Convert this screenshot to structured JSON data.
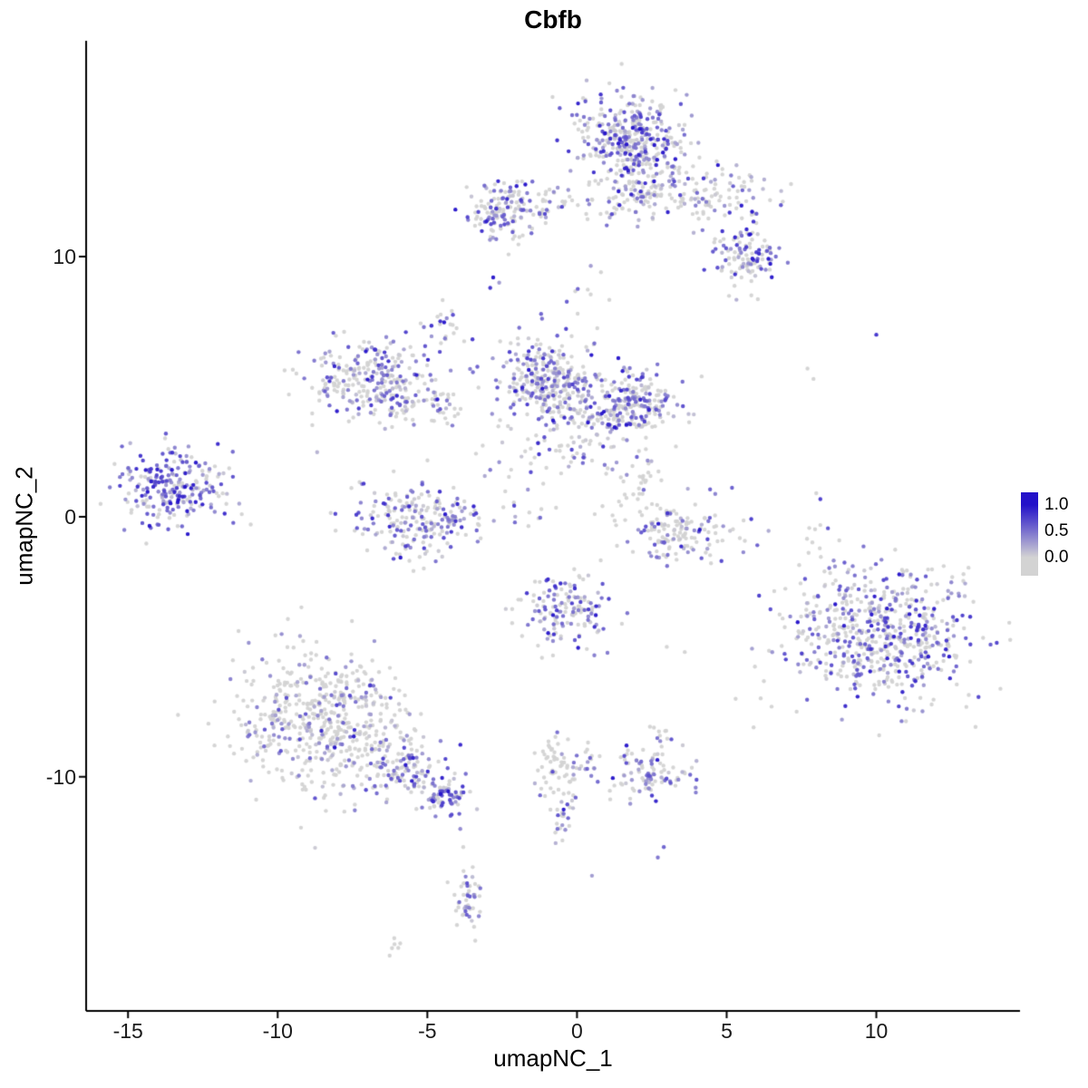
{
  "chart_data": {
    "type": "scatter",
    "title": "Cbfb",
    "xlabel": "umapNC_1",
    "ylabel": "umapNC_2",
    "xlim": [
      -16.4,
      14.8
    ],
    "ylim": [
      -19.0,
      18.3
    ],
    "xticks": [
      -15,
      -10,
      -5,
      0,
      5,
      10
    ],
    "yticks": [
      -10,
      0,
      10
    ],
    "legend": {
      "ticks": [
        "1.0",
        "0.5",
        "0.0"
      ],
      "position": "right"
    },
    "colors": {
      "low": "#D3D3D3",
      "high": "#2311C9",
      "axis": "#000000",
      "tick_text": "#1a1a1a"
    },
    "point_radius": 2.2,
    "seed": 20240612,
    "clusters": [
      {
        "name": "top-main",
        "cx": 1.8,
        "cy": 14.5,
        "sx": 0.95,
        "sy": 1.0,
        "n": 380,
        "frac": 0.55,
        "vmean": 0.5,
        "vsd": 0.28
      },
      {
        "name": "top-main-lower",
        "cx": 2.0,
        "cy": 12.4,
        "sx": 0.7,
        "sy": 0.5,
        "n": 90,
        "frac": 0.4,
        "vmean": 0.45,
        "vsd": 0.25
      },
      {
        "name": "top-right-trail",
        "cx": 4.6,
        "cy": 12.4,
        "sx": 1.1,
        "sy": 0.55,
        "n": 110,
        "frac": 0.35,
        "vmean": 0.45,
        "vsd": 0.3
      },
      {
        "name": "top-right-clump",
        "cx": 5.5,
        "cy": 9.9,
        "sx": 0.65,
        "sy": 0.7,
        "n": 110,
        "frac": 0.45,
        "vmean": 0.5,
        "vsd": 0.3
      },
      {
        "name": "upper-left-cluster",
        "cx": -2.6,
        "cy": 11.7,
        "sx": 0.55,
        "sy": 0.55,
        "n": 130,
        "frac": 0.6,
        "vmean": 0.55,
        "vsd": 0.3
      },
      {
        "name": "upper-connector",
        "cx": -0.9,
        "cy": 12.1,
        "sx": 0.9,
        "sy": 0.45,
        "n": 50,
        "frac": 0.3,
        "vmean": 0.4,
        "vsd": 0.25
      },
      {
        "name": "upper-sparse",
        "cx": 0.3,
        "cy": 8.4,
        "sx": 0.5,
        "sy": 0.6,
        "n": 9,
        "frac": 0.2,
        "vmean": 0.4,
        "vsd": 0.2
      },
      {
        "name": "small-upper-mid",
        "cx": -4.5,
        "cy": 7.3,
        "sx": 0.3,
        "sy": 0.4,
        "n": 22,
        "frac": 0.5,
        "vmean": 0.5,
        "vsd": 0.3
      },
      {
        "name": "left-mid-cluster",
        "cx": -6.9,
        "cy": 5.3,
        "sx": 1.05,
        "sy": 0.85,
        "n": 270,
        "frac": 0.55,
        "vmean": 0.45,
        "vsd": 0.27
      },
      {
        "name": "left-mid-tail",
        "cx": -5.0,
        "cy": 4.3,
        "sx": 0.6,
        "sy": 0.45,
        "n": 50,
        "frac": 0.4,
        "vmean": 0.4,
        "vsd": 0.25
      },
      {
        "name": "center-main",
        "cx": -1.0,
        "cy": 5.3,
        "sx": 0.85,
        "sy": 0.8,
        "n": 300,
        "frac": 0.5,
        "vmean": 0.45,
        "vsd": 0.27
      },
      {
        "name": "center-right",
        "cx": 1.9,
        "cy": 4.3,
        "sx": 0.75,
        "sy": 0.6,
        "n": 200,
        "frac": 0.6,
        "vmean": 0.5,
        "vsd": 0.27
      },
      {
        "name": "center-bridge",
        "cx": 0.5,
        "cy": 4.1,
        "sx": 0.8,
        "sy": 0.6,
        "n": 90,
        "frac": 0.35,
        "vmean": 0.4,
        "vsd": 0.25
      },
      {
        "name": "center-below",
        "cx": -0.8,
        "cy": 2.4,
        "sx": 1.1,
        "sy": 0.6,
        "n": 55,
        "frac": 0.4,
        "vmean": 0.45,
        "vsd": 0.25
      },
      {
        "name": "far-left-cluster",
        "cx": -13.5,
        "cy": 1.1,
        "sx": 0.85,
        "sy": 0.75,
        "n": 240,
        "frac": 0.75,
        "vmean": 0.55,
        "vsd": 0.28
      },
      {
        "name": "center-low-ring",
        "cx": -5.2,
        "cy": -0.1,
        "sx": 1.1,
        "sy": 0.7,
        "n": 220,
        "frac": 0.5,
        "vmean": 0.45,
        "vsd": 0.27
      },
      {
        "name": "right-arc",
        "cx": 3.3,
        "cy": -0.6,
        "sx": 1.0,
        "sy": 0.55,
        "n": 150,
        "frac": 0.4,
        "vmean": 0.45,
        "vsd": 0.28
      },
      {
        "name": "right-arc-upper",
        "cx": 2.2,
        "cy": 1.3,
        "sx": 0.4,
        "sy": 0.55,
        "n": 30,
        "frac": 0.4,
        "vmean": 0.45,
        "vsd": 0.25
      },
      {
        "name": "mid-small-cluster",
        "cx": -0.4,
        "cy": -3.7,
        "sx": 0.7,
        "sy": 0.7,
        "n": 150,
        "frac": 0.55,
        "vmean": 0.5,
        "vsd": 0.27
      },
      {
        "name": "right-big-cluster",
        "cx": 10.3,
        "cy": -4.6,
        "sx": 1.55,
        "sy": 1.25,
        "n": 620,
        "frac": 0.45,
        "vmean": 0.5,
        "vsd": 0.28
      },
      {
        "name": "right-upper-sparse",
        "cx": 8.0,
        "cy": -0.8,
        "sx": 0.25,
        "sy": 0.7,
        "n": 12,
        "frac": 0.25,
        "vmean": 0.4,
        "vsd": 0.2
      },
      {
        "name": "bottom-left-cluster",
        "cx": -8.5,
        "cy": -7.8,
        "sx": 1.5,
        "sy": 1.35,
        "n": 560,
        "frac": 0.3,
        "vmean": 0.38,
        "vsd": 0.24
      },
      {
        "name": "bottom-left-tail",
        "cx": -5.6,
        "cy": -9.8,
        "sx": 0.7,
        "sy": 0.5,
        "n": 110,
        "frac": 0.5,
        "vmean": 0.45,
        "vsd": 0.25
      },
      {
        "name": "bottom-tail-end",
        "cx": -4.4,
        "cy": -10.7,
        "sx": 0.4,
        "sy": 0.35,
        "n": 70,
        "frac": 0.6,
        "vmean": 0.5,
        "vsd": 0.27
      },
      {
        "name": "bottom-strand-cluster",
        "cx": -3.6,
        "cy": -14.8,
        "sx": 0.3,
        "sy": 0.55,
        "n": 45,
        "frac": 0.5,
        "vmean": 0.45,
        "vsd": 0.25
      },
      {
        "name": "bottom-tiny-left",
        "cx": -6.0,
        "cy": -16.4,
        "sx": 0.25,
        "sy": 0.2,
        "n": 6,
        "frac": 0.15,
        "vmean": 0.3,
        "vsd": 0.15
      },
      {
        "name": "mid-bottom-cluster",
        "cx": -0.4,
        "cy": -9.6,
        "sx": 0.55,
        "sy": 0.55,
        "n": 70,
        "frac": 0.25,
        "vmean": 0.4,
        "vsd": 0.22
      },
      {
        "name": "mid-bottom-strand",
        "cx": -0.45,
        "cy": -11.7,
        "sx": 0.18,
        "sy": 0.6,
        "n": 25,
        "frac": 0.5,
        "vmean": 0.5,
        "vsd": 0.3
      },
      {
        "name": "bottom-right-cluster",
        "cx": 2.4,
        "cy": -9.9,
        "sx": 0.75,
        "sy": 0.5,
        "n": 100,
        "frac": 0.5,
        "vmean": 0.45,
        "vsd": 0.27
      },
      {
        "name": "bottom-right-sparse",
        "cx": 2.6,
        "cy": -8.4,
        "sx": 0.4,
        "sy": 0.35,
        "n": 10,
        "frac": 0.3,
        "vmean": 0.4,
        "vsd": 0.2
      },
      {
        "name": "center-gap-sparse",
        "cx": -1.6,
        "cy": 0.3,
        "sx": 0.6,
        "sy": 0.6,
        "n": 12,
        "frac": 0.3,
        "vmean": 0.4,
        "vsd": 0.2
      }
    ],
    "singles": [
      {
        "x": -2.8,
        "y": 9.2,
        "v": 1.0
      },
      {
        "x": -2.9,
        "y": 8.8,
        "v": 0.85
      },
      {
        "x": -2.6,
        "y": 9.0,
        "v": 0.3
      },
      {
        "x": -1.2,
        "y": 7.8,
        "v": 0.6
      },
      {
        "x": 0.8,
        "y": 9.4,
        "v": 0
      },
      {
        "x": -12.0,
        "y": 2.8,
        "v": 0.9
      },
      {
        "x": -11.5,
        "y": 2.5,
        "v": 0.55
      },
      {
        "x": -11.2,
        "y": 0.1,
        "v": 0
      },
      {
        "x": -10.9,
        "y": -0.3,
        "v": 0
      },
      {
        "x": -0.8,
        "y": 3.7,
        "v": 1.0
      },
      {
        "x": -2.9,
        "y": 1.8,
        "v": 0.5
      },
      {
        "x": -2.6,
        "y": 2.1,
        "v": 0.35
      },
      {
        "x": 2.0,
        "y": 2.3,
        "v": 0.6
      },
      {
        "x": 2.3,
        "y": 2.6,
        "v": 0
      },
      {
        "x": 4.1,
        "y": -0.5,
        "v": 1.0
      },
      {
        "x": 10.0,
        "y": 7.0,
        "v": 0.85
      },
      {
        "x": 7.7,
        "y": 5.7,
        "v": 0
      },
      {
        "x": 7.9,
        "y": 5.3,
        "v": 0
      },
      {
        "x": 6.5,
        "y": -7.3,
        "v": 0
      },
      {
        "x": 5.9,
        "y": -8.1,
        "v": 0
      },
      {
        "x": 5.3,
        "y": -7.0,
        "v": 0
      },
      {
        "x": 3.6,
        "y": -5.2,
        "v": 0
      },
      {
        "x": 3.0,
        "y": -5.0,
        "v": 0
      },
      {
        "x": 2.9,
        "y": -12.7,
        "v": 0.6
      },
      {
        "x": 2.7,
        "y": -13.1,
        "v": 0.5
      },
      {
        "x": 0.5,
        "y": -13.8,
        "v": 0.3
      },
      {
        "x": -3.9,
        "y": -12.0,
        "v": 0.4
      },
      {
        "x": -3.8,
        "y": -12.7,
        "v": 0
      },
      {
        "x": -3.4,
        "y": -16.3,
        "v": 0
      }
    ]
  }
}
